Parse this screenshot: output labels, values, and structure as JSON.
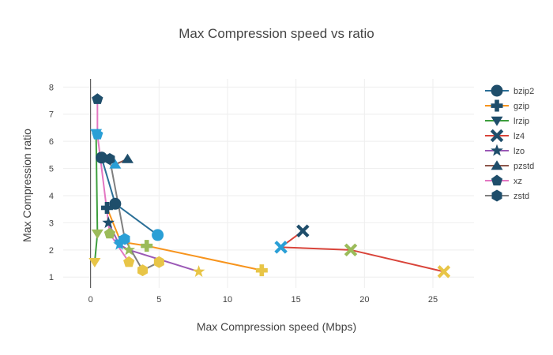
{
  "chart_data": {
    "type": "line",
    "title": "Max Compression speed vs ratio",
    "xlabel": "Max Compression speed (Mbps)",
    "ylabel": "Max Compression ratio",
    "xlim": [
      -2,
      28
    ],
    "ylim": [
      0.6,
      8.3
    ],
    "xticks": [
      0,
      5,
      10,
      15,
      20,
      25
    ],
    "yticks": [
      1,
      2,
      3,
      4,
      5,
      6,
      7,
      8
    ],
    "grid": true,
    "legend_position": "right",
    "series": [
      {
        "name": "bzip2",
        "color": "#2a6f97",
        "marker": "circle",
        "x": [
          0.8,
          1.8,
          4.9
        ],
        "y": [
          5.4,
          3.7,
          2.55
        ],
        "marker_colors": [
          "#1f4e6b",
          "#1f4e6b",
          "#2a9fd6"
        ]
      },
      {
        "name": "gzip",
        "color": "#f7941d",
        "marker": "cross",
        "x": [
          1.2,
          2.2,
          4.1,
          12.5
        ],
        "y": [
          3.55,
          2.3,
          2.15,
          1.25
        ],
        "marker_colors": [
          "#1f4e6b",
          "#2a9fd6",
          "#9bbb59",
          "#e8c547"
        ]
      },
      {
        "name": "lrzip",
        "color": "#3d9e3d",
        "marker": "triangle-down",
        "x": [
          0.3,
          0.5,
          0.4
        ],
        "y": [
          1.55,
          2.6,
          6.3
        ],
        "marker_colors": [
          "#e8c547",
          "#9bbb59",
          "#2a9fd6"
        ]
      },
      {
        "name": "lz4",
        "color": "#d9443a",
        "marker": "x",
        "x": [
          15.5,
          13.9,
          19.0,
          25.8
        ],
        "y": [
          2.7,
          2.1,
          2.0,
          1.2
        ],
        "marker_colors": [
          "#1f4e6b",
          "#2a9fd6",
          "#9bbb59",
          "#e8c547"
        ]
      },
      {
        "name": "lzo",
        "color": "#9b59b6",
        "marker": "star",
        "x": [
          1.3,
          2.1,
          2.8,
          7.9
        ],
        "y": [
          3.0,
          2.2,
          2.0,
          1.2
        ],
        "marker_colors": [
          "#1f4e6b",
          "#2a9fd6",
          "#9bbb59",
          "#e8c547"
        ]
      },
      {
        "name": "pzstd",
        "color": "#8c564b",
        "marker": "triangle-up",
        "x": [
          2.7,
          1.8
        ],
        "y": [
          5.35,
          5.15
        ],
        "marker_colors": [
          "#1f4e6b",
          "#2a9fd6"
        ]
      },
      {
        "name": "xz",
        "color": "#e377c2",
        "marker": "pentagon",
        "x": [
          0.5,
          0.5,
          1.4,
          2.8
        ],
        "y": [
          7.55,
          6.25,
          2.6,
          1.55
        ],
        "marker_colors": [
          "#1f4e6b",
          "#2a9fd6",
          "#9bbb59",
          "#e8c547"
        ]
      },
      {
        "name": "zstd",
        "color": "#7f7f7f",
        "marker": "hexagon",
        "x": [
          1.4,
          2.5,
          3.8,
          5.0
        ],
        "y": [
          5.35,
          2.4,
          1.25,
          1.55
        ],
        "marker_colors": [
          "#1f4e6b",
          "#2a9fd6",
          "#e8c547",
          "#e8c547"
        ]
      }
    ]
  }
}
